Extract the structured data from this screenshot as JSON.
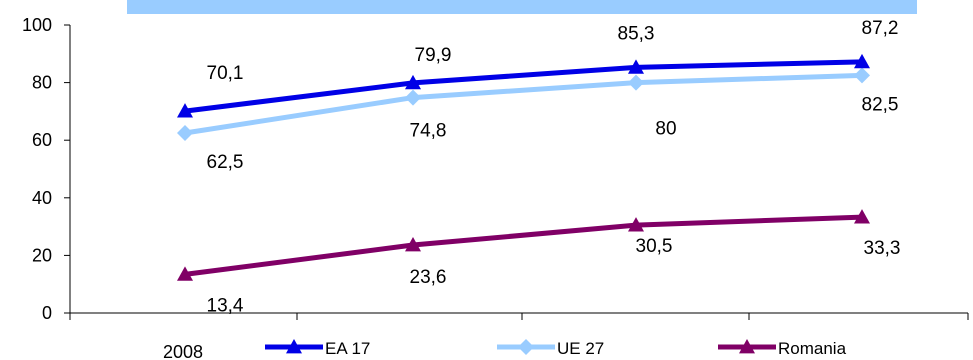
{
  "chart_data": {
    "type": "line",
    "x": [
      "2008",
      "",
      "",
      ""
    ],
    "ylim": [
      0,
      100
    ],
    "yticks": [
      0,
      20,
      40,
      60,
      80,
      100
    ],
    "grid": false,
    "legend_position": "bottom",
    "series": [
      {
        "name": "EA 17",
        "color": "#0000e6",
        "marker": "triangle",
        "values": [
          70.1,
          79.9,
          85.3,
          87.2
        ],
        "labels": [
          "70,1",
          "79,9",
          "85,3",
          "87,2"
        ]
      },
      {
        "name": "UE 27",
        "color": "#99ccff",
        "marker": "diamond",
        "values": [
          62.5,
          74.8,
          80,
          82.5
        ],
        "labels": [
          "62,5",
          "74,8",
          "80",
          "82,5"
        ]
      },
      {
        "name": "Romania",
        "color": "#800066",
        "marker": "triangle",
        "values": [
          13.4,
          23.6,
          30.5,
          33.3
        ],
        "labels": [
          "13,4",
          "23,6",
          "30,5",
          "33,3"
        ]
      }
    ],
    "title_band_color": "#99ccff"
  }
}
